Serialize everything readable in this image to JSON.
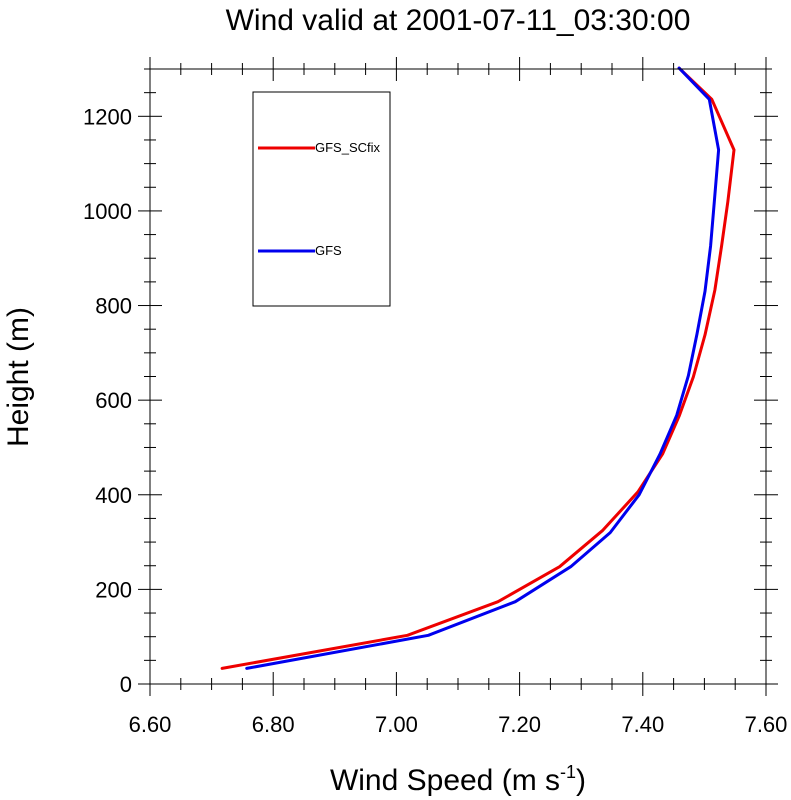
{
  "chart_data": {
    "type": "line",
    "title": "Wind valid at 2001-07-11_03:30:00",
    "xlabel_main": "Wind Speed (m s",
    "xlabel_sup": "-1",
    "xlabel_close": ")",
    "ylabel": "Height (m)",
    "xlim": [
      6.6,
      7.6
    ],
    "ylim": [
      0,
      1300
    ],
    "x_ticks": [
      6.6,
      6.8,
      7.0,
      7.2,
      7.4,
      7.6
    ],
    "x_tick_labels": [
      "6.60",
      "6.80",
      "7.00",
      "7.20",
      "7.40",
      "7.60"
    ],
    "y_ticks": [
      0,
      200,
      400,
      600,
      800,
      1000,
      1200
    ],
    "y_tick_labels": [
      "0",
      "200",
      "400",
      "600",
      "800",
      "1000",
      "1200"
    ],
    "grid": false,
    "legend_position": "top-left",
    "series": [
      {
        "name": "GFS_SCfix",
        "color": "#ee0000",
        "points": [
          [
            6.717,
            33
          ],
          [
            7.018,
            103
          ],
          [
            7.165,
            174
          ],
          [
            7.265,
            248
          ],
          [
            7.335,
            325
          ],
          [
            7.392,
            406
          ],
          [
            7.432,
            486
          ],
          [
            7.459,
            566
          ],
          [
            7.482,
            649
          ],
          [
            7.501,
            738
          ],
          [
            7.517,
            833
          ],
          [
            7.528,
            926
          ],
          [
            7.538,
            1019
          ],
          [
            7.548,
            1129
          ],
          [
            7.512,
            1236
          ],
          [
            7.459,
            1302
          ]
        ]
      },
      {
        "name": "GFS",
        "color": "#0000ee",
        "points": [
          [
            6.757,
            33
          ],
          [
            7.052,
            103
          ],
          [
            7.193,
            174
          ],
          [
            7.283,
            248
          ],
          [
            7.347,
            320
          ],
          [
            7.394,
            400
          ],
          [
            7.428,
            486
          ],
          [
            7.455,
            568
          ],
          [
            7.474,
            652
          ],
          [
            7.488,
            740
          ],
          [
            7.501,
            830
          ],
          [
            7.51,
            926
          ],
          [
            7.516,
            1019
          ],
          [
            7.523,
            1129
          ],
          [
            7.508,
            1236
          ],
          [
            7.459,
            1302
          ]
        ]
      }
    ]
  }
}
